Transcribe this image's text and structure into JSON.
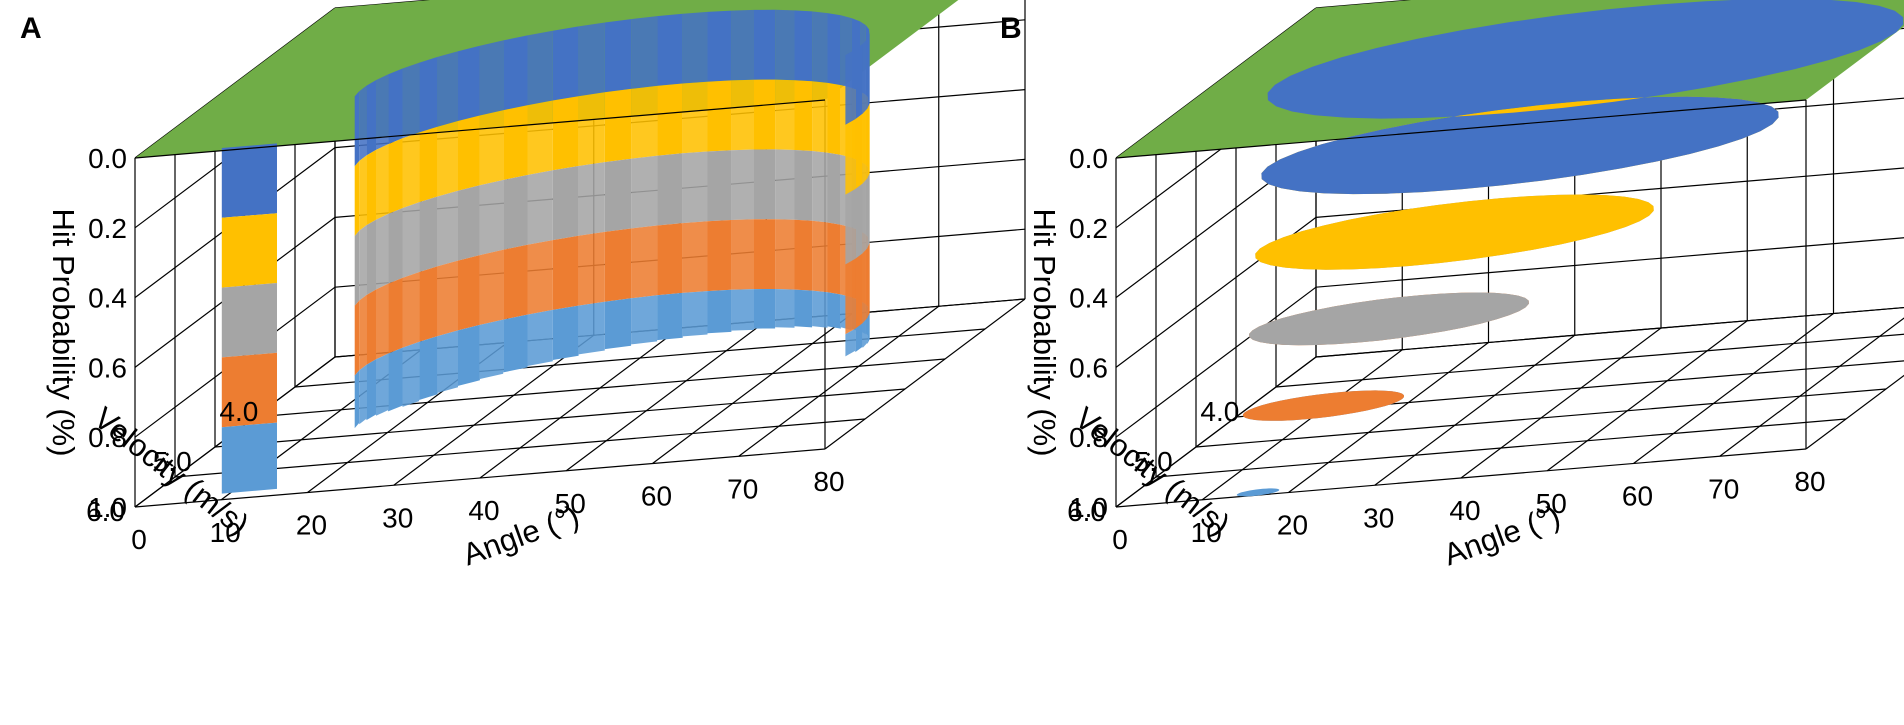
{
  "chart_data": [
    {
      "panel": "A",
      "type": "surface3d",
      "zlabel": "Hit Probability  (%)",
      "xlabel": "Angle (°)",
      "ylabel": "Velocity (m/s)",
      "z_ticks": [
        "0.0",
        "0.2",
        "0.4",
        "0.6",
        "0.8",
        "1.0"
      ],
      "x_ticks": [
        "0",
        "10",
        "20",
        "30",
        "40",
        "50",
        "60",
        "70",
        "80"
      ],
      "y_ticks": [
        "4.0",
        "5.0",
        "6.0"
      ],
      "zlim": [
        0,
        1
      ],
      "xlim": [
        0,
        80
      ],
      "ylim": [
        3.5,
        6.0
      ],
      "color_bands": [
        {
          "range": [
            0.0,
            0.2
          ],
          "color": "#4472c4"
        },
        {
          "range": [
            0.2,
            0.4
          ],
          "color": "#ffc000"
        },
        {
          "range": [
            0.4,
            0.6
          ],
          "color": "#a5a5a5"
        },
        {
          "range": [
            0.6,
            0.8
          ],
          "color": "#ed7d31"
        },
        {
          "range": [
            0.8,
            1.0
          ],
          "color": "#5b9bd5"
        }
      ],
      "top_color": "#70ad47",
      "surface_shape": "stepped ring, steep walls",
      "trough": {
        "angle": 10,
        "velocity": 6.0,
        "depth": 0.97
      }
    },
    {
      "panel": "B",
      "type": "surface3d",
      "zlabel": "Hit Probability  (%)",
      "xlabel": "Angle (°)",
      "ylabel": "Velocity (m/s)",
      "z_ticks": [
        "0.0",
        "0.2",
        "0.4",
        "0.6",
        "0.8",
        "1.0"
      ],
      "x_ticks": [
        "0",
        "10",
        "20",
        "30",
        "40",
        "50",
        "60",
        "70",
        "80"
      ],
      "y_ticks": [
        "4.0",
        "5.0",
        "6.0"
      ],
      "zlim": [
        0,
        1
      ],
      "xlim": [
        0,
        80
      ],
      "ylim": [
        3.5,
        6.0
      ],
      "color_bands": [
        {
          "range": [
            0.0,
            0.2
          ],
          "color": "#4472c4"
        },
        {
          "range": [
            0.2,
            0.4
          ],
          "color": "#ffc000"
        },
        {
          "range": [
            0.4,
            0.6
          ],
          "color": "#a5a5a5"
        },
        {
          "range": [
            0.6,
            0.8
          ],
          "color": "#ed7d31"
        },
        {
          "range": [
            0.8,
            1.0
          ],
          "color": "#5b9bd5"
        }
      ],
      "top_color": "#70ad47",
      "surface_shape": "smooth funnel",
      "trough": {
        "angle": 18,
        "velocity": 6.0,
        "depth": 0.99
      }
    }
  ]
}
